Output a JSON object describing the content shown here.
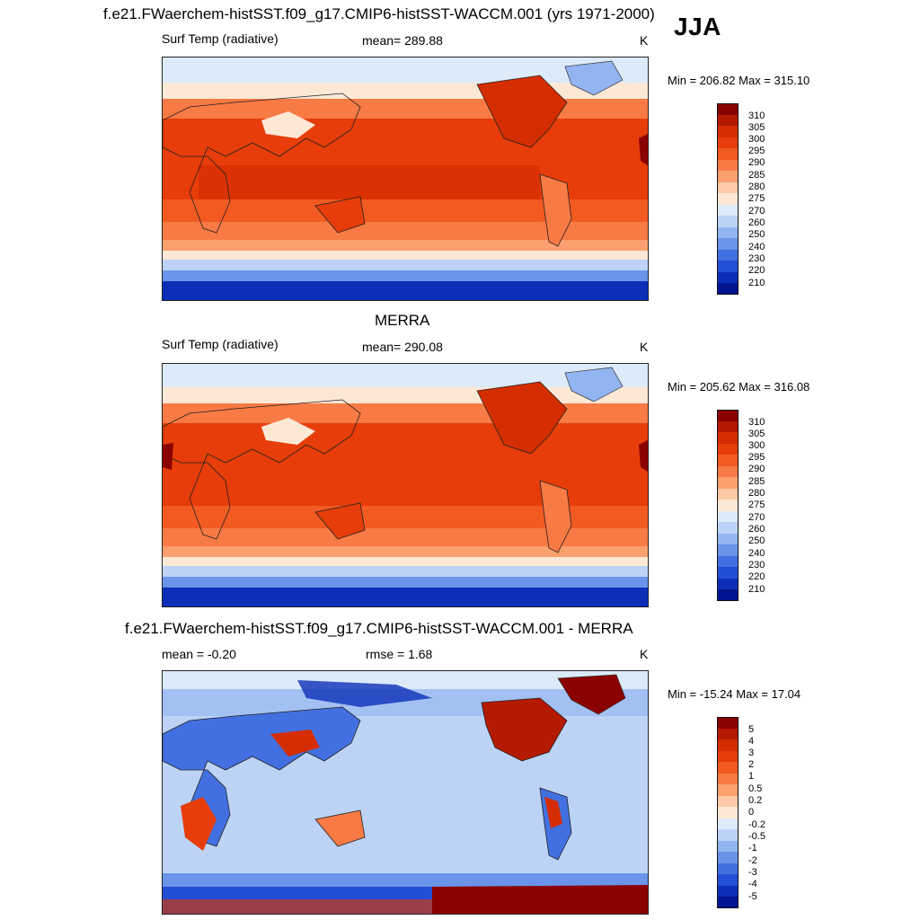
{
  "header": {
    "title": "f.e21.FWaerchem-histSST.f09_g17.CMIP6-histSST-WACCM.001 (yrs 1971-2000)",
    "season": "JJA"
  },
  "panel_model": {
    "variable": "Surf Temp (radiative)",
    "mean": "mean= 289.88",
    "units": "K",
    "minmax": "Min = 206.82 Max = 315.10"
  },
  "panel_obs": {
    "title": "MERRA",
    "variable": "Surf Temp (radiative)",
    "mean": "mean= 290.08",
    "units": "K",
    "minmax": "Min = 205.62 Max = 316.08"
  },
  "panel_diff": {
    "title": "f.e21.FWaerchem-histSST.f09_g17.CMIP6-histSST-WACCM.001 - MERRA",
    "mean": "mean =  -0.20",
    "rmse": "rmse =   1.68",
    "units": "K",
    "minmax": "Min = -15.24 Max =  17.04"
  },
  "colorbar_abs": {
    "labels": [
      "310",
      "305",
      "300",
      "295",
      "290",
      "285",
      "280",
      "275",
      "270",
      "260",
      "250",
      "240",
      "230",
      "220",
      "210"
    ],
    "colors": [
      "#8b0000",
      "#b41a00",
      "#d42d00",
      "#e63d0a",
      "#f25a22",
      "#f87a44",
      "#fba06e",
      "#fdc9a6",
      "#fde8d6",
      "#dceafa",
      "#bcd3f5",
      "#92b4f0",
      "#6a93ea",
      "#4270e0",
      "#234fd4",
      "#0d2fb8",
      "#00158f"
    ]
  },
  "colorbar_diff": {
    "labels": [
      "5",
      "4",
      "3",
      "2",
      "1",
      "0.5",
      "0.2",
      "0",
      "-0.2",
      "-0.5",
      "-1",
      "-2",
      "-3",
      "-4",
      "-5"
    ],
    "colors": [
      "#8b0000",
      "#b41a00",
      "#d42d00",
      "#e63d0a",
      "#f25a22",
      "#f87a44",
      "#fba06e",
      "#fdc9a6",
      "#fde8d6",
      "#dceafa",
      "#bcd3f5",
      "#92b4f0",
      "#6a93ea",
      "#4270e0",
      "#234fd4",
      "#0d2fb8",
      "#00158f"
    ]
  }
}
